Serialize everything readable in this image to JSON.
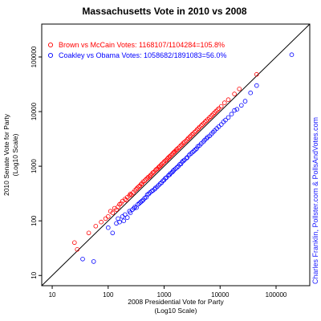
{
  "chart_data": {
    "type": "scatter",
    "title": "Massachusetts Vote in 2010 vs 2008",
    "xlabel": [
      "2008 Presidential Vote for Party",
      "(Log10 Scale)"
    ],
    "ylabel": [
      "2010 Senate Vote for Party",
      "(Log10 Scale)"
    ],
    "x_scale": "log10",
    "y_scale": "log10",
    "xlim": [
      6.5,
      400000
    ],
    "ylim": [
      6.5,
      400000
    ],
    "x_ticks": [
      "10",
      "100",
      "1000",
      "10000",
      "100000"
    ],
    "y_ticks": [
      "10",
      "100",
      "1000",
      "10000",
      "100000"
    ],
    "reference_line": "y = x",
    "grid": false,
    "legend_position": "top-left",
    "credit": "Charles Franklin, Pollster.com & PollsAndVotes.com",
    "series": [
      {
        "name": "Brown vs McCain Votes: 1168107/1104284=105.8%",
        "color": "#ff0000",
        "marker": "open-circle",
        "points": [
          [
            25,
            40
          ],
          [
            28,
            30
          ],
          [
            45,
            60
          ],
          [
            60,
            80
          ],
          [
            75,
            95
          ],
          [
            90,
            110
          ],
          [
            100,
            120
          ],
          [
            110,
            150
          ],
          [
            120,
            140
          ],
          [
            130,
            170
          ],
          [
            140,
            160
          ],
          [
            150,
            180
          ],
          [
            160,
            200
          ],
          [
            170,
            210
          ],
          [
            180,
            230
          ],
          [
            200,
            250
          ],
          [
            210,
            240
          ],
          [
            220,
            270
          ],
          [
            240,
            290
          ],
          [
            250,
            310
          ],
          [
            260,
            300
          ],
          [
            280,
            330
          ],
          [
            300,
            360
          ],
          [
            320,
            380
          ],
          [
            330,
            400
          ],
          [
            350,
            420
          ],
          [
            370,
            440
          ],
          [
            390,
            470
          ],
          [
            400,
            480
          ],
          [
            420,
            520
          ],
          [
            450,
            540
          ],
          [
            470,
            570
          ],
          [
            500,
            600
          ],
          [
            520,
            630
          ],
          [
            550,
            650
          ],
          [
            570,
            680
          ],
          [
            600,
            720
          ],
          [
            630,
            760
          ],
          [
            650,
            780
          ],
          [
            700,
            840
          ],
          [
            730,
            880
          ],
          [
            760,
            900
          ],
          [
            800,
            960
          ],
          [
            830,
            990
          ],
          [
            870,
            1040
          ],
          [
            900,
            1080
          ],
          [
            950,
            1140
          ],
          [
            1000,
            1200
          ],
          [
            1050,
            1260
          ],
          [
            1100,
            1300
          ],
          [
            1150,
            1380
          ],
          [
            1200,
            1450
          ],
          [
            1260,
            1500
          ],
          [
            1300,
            1560
          ],
          [
            1380,
            1650
          ],
          [
            1450,
            1740
          ],
          [
            1500,
            1800
          ],
          [
            1560,
            1870
          ],
          [
            1650,
            1980
          ],
          [
            1700,
            2050
          ],
          [
            1800,
            2150
          ],
          [
            1900,
            2280
          ],
          [
            2000,
            2400
          ],
          [
            2100,
            2500
          ],
          [
            2200,
            2650
          ],
          [
            2300,
            2750
          ],
          [
            2450,
            2900
          ],
          [
            2600,
            3100
          ],
          [
            2700,
            3250
          ],
          [
            2850,
            3400
          ],
          [
            3000,
            3600
          ],
          [
            3150,
            3800
          ],
          [
            3300,
            3950
          ],
          [
            3500,
            4200
          ],
          [
            3700,
            4400
          ],
          [
            3900,
            4700
          ],
          [
            4100,
            4900
          ],
          [
            4300,
            5200
          ],
          [
            4600,
            5500
          ],
          [
            4800,
            5800
          ],
          [
            5100,
            6100
          ],
          [
            5400,
            6500
          ],
          [
            5700,
            6800
          ],
          [
            6000,
            7200
          ],
          [
            6400,
            7700
          ],
          [
            6800,
            8100
          ],
          [
            7200,
            8600
          ],
          [
            7600,
            9100
          ],
          [
            8000,
            9600
          ],
          [
            8500,
            10200
          ],
          [
            9000,
            10800
          ],
          [
            9500,
            11400
          ],
          [
            10500,
            12500
          ],
          [
            12000,
            14500
          ],
          [
            14000,
            16500
          ],
          [
            18000,
            21000
          ],
          [
            22000,
            26000
          ],
          [
            45000,
            48000
          ]
        ]
      },
      {
        "name": "Coakley vs Obama Votes: 1058682/1891083=56.0%",
        "color": "#0000ff",
        "marker": "open-circle",
        "points": [
          [
            35,
            20
          ],
          [
            55,
            18
          ],
          [
            100,
            75
          ],
          [
            120,
            60
          ],
          [
            140,
            90
          ],
          [
            150,
            110
          ],
          [
            160,
            95
          ],
          [
            180,
            120
          ],
          [
            190,
            100
          ],
          [
            200,
            130
          ],
          [
            220,
            115
          ],
          [
            240,
            150
          ],
          [
            250,
            140
          ],
          [
            270,
            160
          ],
          [
            290,
            170
          ],
          [
            300,
            180
          ],
          [
            320,
            175
          ],
          [
            340,
            200
          ],
          [
            360,
            210
          ],
          [
            380,
            220
          ],
          [
            400,
            230
          ],
          [
            420,
            240
          ],
          [
            450,
            260
          ],
          [
            480,
            270
          ],
          [
            500,
            300
          ],
          [
            530,
            310
          ],
          [
            560,
            330
          ],
          [
            600,
            350
          ],
          [
            630,
            360
          ],
          [
            680,
            380
          ],
          [
            700,
            400
          ],
          [
            750,
            420
          ],
          [
            800,
            450
          ],
          [
            850,
            480
          ],
          [
            900,
            500
          ],
          [
            950,
            540
          ],
          [
            1000,
            560
          ],
          [
            1050,
            600
          ],
          [
            1100,
            620
          ],
          [
            1200,
            680
          ],
          [
            1250,
            700
          ],
          [
            1300,
            740
          ],
          [
            1400,
            780
          ],
          [
            1450,
            820
          ],
          [
            1500,
            850
          ],
          [
            1600,
            900
          ],
          [
            1700,
            950
          ],
          [
            1800,
            1000
          ],
          [
            1900,
            1080
          ],
          [
            2000,
            1100
          ],
          [
            2100,
            1200
          ],
          [
            2200,
            1250
          ],
          [
            2300,
            1300
          ],
          [
            2500,
            1400
          ],
          [
            2600,
            1450
          ],
          [
            2800,
            1600
          ],
          [
            3000,
            1700
          ],
          [
            3200,
            1800
          ],
          [
            3400,
            1900
          ],
          [
            3600,
            2000
          ],
          [
            3800,
            2100
          ],
          [
            4000,
            2300
          ],
          [
            4300,
            2400
          ],
          [
            4600,
            2600
          ],
          [
            5000,
            2800
          ],
          [
            5300,
            3000
          ],
          [
            5700,
            3200
          ],
          [
            6000,
            3400
          ],
          [
            6500,
            3600
          ],
          [
            7000,
            3900
          ],
          [
            7500,
            4200
          ],
          [
            8000,
            4500
          ],
          [
            8700,
            4900
          ],
          [
            9500,
            5300
          ],
          [
            10500,
            5800
          ],
          [
            11500,
            6500
          ],
          [
            12500,
            7000
          ],
          [
            14000,
            7800
          ],
          [
            16000,
            9000
          ],
          [
            18000,
            10500
          ],
          [
            20000,
            11000
          ],
          [
            24000,
            13000
          ],
          [
            28000,
            15500
          ],
          [
            35000,
            22000
          ],
          [
            45000,
            30000
          ],
          [
            190000,
            110000
          ]
        ]
      }
    ]
  }
}
